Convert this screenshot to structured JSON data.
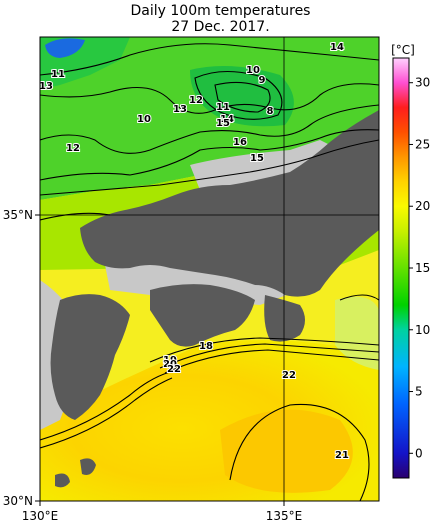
{
  "title": {
    "line1": "Daily 100m temperatures",
    "line2": "27 Dec. 2017."
  },
  "axes": {
    "x_ticks": [
      {
        "label": "130°E",
        "value": 130
      },
      {
        "label": "135°E",
        "value": 135
      }
    ],
    "y_ticks": [
      {
        "label": "30°N",
        "value": 30
      },
      {
        "label": "35°N",
        "value": 35
      }
    ],
    "lon_range": [
      130,
      137
    ],
    "lat_range": [
      30,
      35.5
    ]
  },
  "colorbar": {
    "unit": "[°C]",
    "ticks": [
      "0",
      "5",
      "10",
      "15",
      "20",
      "25",
      "30"
    ],
    "range": [
      -2,
      32
    ],
    "stops": [
      {
        "t": -2,
        "color": "#2a006e"
      },
      {
        "t": 0,
        "color": "#1414c8"
      },
      {
        "t": 4,
        "color": "#0064ff"
      },
      {
        "t": 7,
        "color": "#00b4ff"
      },
      {
        "t": 10,
        "color": "#00d2a0"
      },
      {
        "t": 12,
        "color": "#00d200"
      },
      {
        "t": 15,
        "color": "#64e100"
      },
      {
        "t": 18,
        "color": "#c8f000"
      },
      {
        "t": 20,
        "color": "#fafa00"
      },
      {
        "t": 22,
        "color": "#ffd200"
      },
      {
        "t": 24,
        "color": "#ff9600"
      },
      {
        "t": 26,
        "color": "#ff5000"
      },
      {
        "t": 28,
        "color": "#ff1e1e"
      },
      {
        "t": 30,
        "color": "#ff50d2"
      },
      {
        "t": 32,
        "color": "#ffd2ff"
      }
    ]
  },
  "contour_labels": [
    "14",
    "11",
    "13",
    "10",
    "9",
    "8",
    "12",
    "13",
    "10",
    "11",
    "14",
    "15",
    "16",
    "15",
    "12",
    "18",
    "19",
    "20",
    "22",
    "22",
    "21"
  ],
  "colors": {
    "land": "#5a5a5a",
    "missing_data": "#c8c8c8",
    "contour_line": "#000000",
    "grid_line": "#000000"
  }
}
